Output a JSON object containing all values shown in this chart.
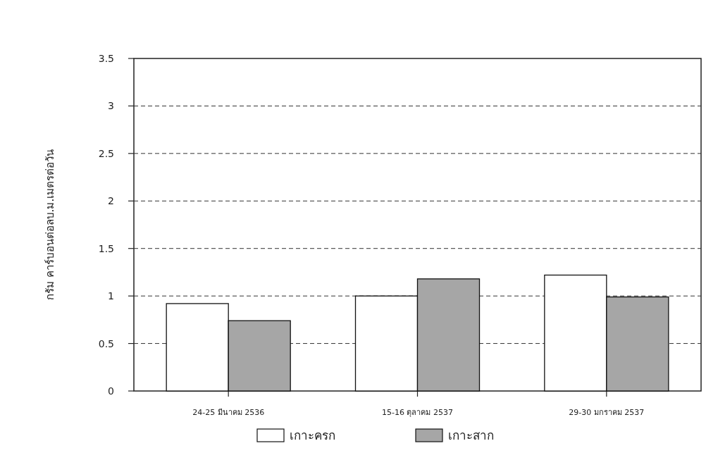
{
  "chart_data": {
    "type": "bar",
    "ylabel": "กรัม คาร์บอนต่อลบ.ม.เมตรต่อวัน",
    "categories": [
      "24-25 มีนาคม 2536",
      "15-16 ตุลาคม 2537",
      "29-30 มกราคม 2537"
    ],
    "series": [
      {
        "name": "เกาะครก",
        "color": "#ffffff",
        "values": [
          0.92,
          1.0,
          1.22
        ]
      },
      {
        "name": "เกาะสาก",
        "color": "#a6a6a6",
        "values": [
          0.74,
          1.18,
          0.99
        ]
      }
    ],
    "ylim": [
      0,
      3.5
    ],
    "yticks": [
      0,
      0.5,
      1,
      1.5,
      2,
      2.5,
      3,
      3.5
    ],
    "grid": "y",
    "legend": "bottom"
  }
}
